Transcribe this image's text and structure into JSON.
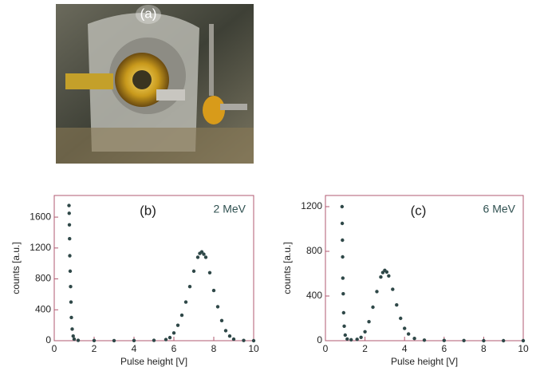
{
  "photo": {
    "label": "(a)"
  },
  "chart_data": [
    {
      "type": "scatter",
      "panel": "(b)",
      "annotation": "2 MeV",
      "xlabel": "Pulse height [V]",
      "ylabel": "counts [a.u.]",
      "color": "#2f4848",
      "frame_color": "#b05a70",
      "x": [
        0.74,
        0.75,
        0.76,
        0.77,
        0.78,
        0.8,
        0.82,
        0.84,
        0.86,
        0.9,
        0.95,
        1.0,
        1.2,
        2,
        3,
        4,
        5,
        5.6,
        5.8,
        6.0,
        6.2,
        6.4,
        6.6,
        6.8,
        7.0,
        7.2,
        7.3,
        7.4,
        7.5,
        7.6,
        7.8,
        8.0,
        8.2,
        8.4,
        8.6,
        8.8,
        9.0,
        9.5,
        10
      ],
      "y": [
        1750,
        1650,
        1500,
        1320,
        1100,
        900,
        700,
        500,
        300,
        150,
        60,
        20,
        5,
        2,
        1,
        2,
        5,
        15,
        40,
        100,
        200,
        330,
        500,
        700,
        900,
        1080,
        1130,
        1150,
        1120,
        1080,
        880,
        650,
        440,
        260,
        130,
        60,
        20,
        3,
        0
      ],
      "xlim": [
        0,
        10
      ],
      "xticks": [
        0,
        2,
        4,
        6,
        8,
        10
      ],
      "ylim": [
        0,
        1880
      ],
      "yticks": [
        0,
        400,
        800,
        1200,
        1600
      ]
    },
    {
      "type": "scatter",
      "panel": "(c)",
      "annotation": "6 MeV",
      "xlabel": "Pulse height [V]",
      "ylabel": "counts [a.u.]",
      "color": "#2f4848",
      "frame_color": "#b05a70",
      "x": [
        0.84,
        0.85,
        0.86,
        0.87,
        0.88,
        0.9,
        0.92,
        0.95,
        1.0,
        1.1,
        1.3,
        1.6,
        1.8,
        2.0,
        2.2,
        2.4,
        2.6,
        2.8,
        2.9,
        3.0,
        3.1,
        3.2,
        3.4,
        3.6,
        3.8,
        4.0,
        4.2,
        4.5,
        5,
        6,
        7,
        8,
        9,
        10
      ],
      "y": [
        1200,
        1050,
        900,
        750,
        560,
        420,
        250,
        130,
        50,
        15,
        8,
        12,
        30,
        80,
        170,
        300,
        440,
        570,
        610,
        630,
        615,
        580,
        460,
        320,
        200,
        110,
        60,
        20,
        5,
        2,
        1,
        0,
        0,
        0
      ],
      "xlim": [
        0,
        10
      ],
      "xticks": [
        0,
        2,
        4,
        6,
        8,
        10
      ],
      "ylim": [
        0,
        1300
      ],
      "yticks": [
        0,
        400,
        800,
        1200
      ]
    }
  ]
}
